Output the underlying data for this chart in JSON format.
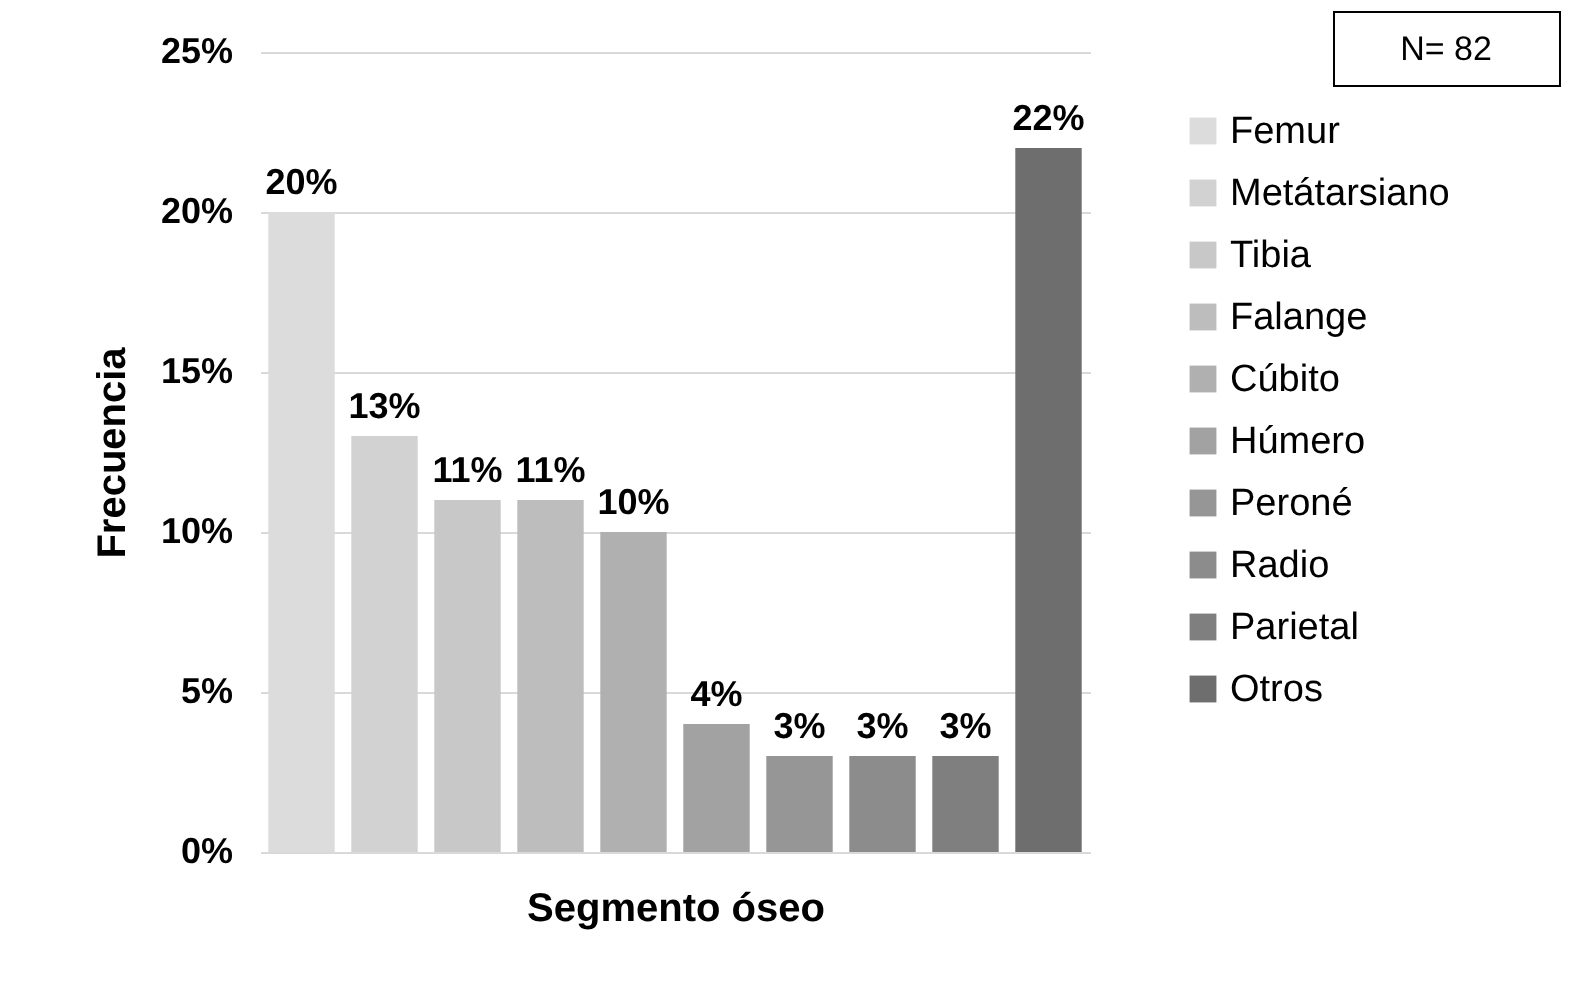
{
  "chart_data": {
    "type": "bar",
    "xlabel": "Segmento óseo",
    "ylabel": "Frecuencia",
    "categories": [
      null,
      null,
      null,
      null,
      null,
      null,
      null,
      null,
      null,
      null
    ],
    "series": [
      {
        "name": "Femur",
        "color": "#dcdcdc",
        "values": [
          20,
          null,
          null,
          null,
          null,
          null,
          null,
          null,
          null,
          null
        ],
        "value_labels": [
          "20%",
          null,
          null,
          null,
          null,
          null,
          null,
          null,
          null,
          null
        ]
      },
      {
        "name": "Metátarsiano",
        "color": "#d2d2d2",
        "values": [
          null,
          13,
          null,
          null,
          null,
          null,
          null,
          null,
          null,
          null
        ],
        "value_labels": [
          null,
          "13%",
          null,
          null,
          null,
          null,
          null,
          null,
          null,
          null
        ]
      },
      {
        "name": "Tibia",
        "color": "#c8c8c8",
        "values": [
          null,
          null,
          11,
          null,
          null,
          null,
          null,
          null,
          null,
          null
        ],
        "value_labels": [
          null,
          null,
          "11%",
          null,
          null,
          null,
          null,
          null,
          null,
          null
        ]
      },
      {
        "name": "Falange",
        "color": "#bdbdbd",
        "values": [
          null,
          null,
          null,
          11,
          null,
          null,
          null,
          null,
          null,
          null
        ],
        "value_labels": [
          null,
          null,
          null,
          "11%",
          null,
          null,
          null,
          null,
          null,
          null
        ]
      },
      {
        "name": "Cúbito",
        "color": "#b0b0b0",
        "values": [
          null,
          null,
          null,
          null,
          10,
          null,
          null,
          null,
          null,
          null
        ],
        "value_labels": [
          null,
          null,
          null,
          null,
          "10%",
          null,
          null,
          null,
          null,
          null
        ]
      },
      {
        "name": "Húmero",
        "color": "#a2a2a2",
        "values": [
          null,
          null,
          null,
          null,
          null,
          4,
          null,
          null,
          null,
          null
        ],
        "value_labels": [
          null,
          null,
          null,
          null,
          null,
          "4%",
          null,
          null,
          null,
          null
        ]
      },
      {
        "name": "Peroné",
        "color": "#969696",
        "values": [
          null,
          null,
          null,
          null,
          null,
          null,
          3,
          null,
          null,
          null
        ],
        "value_labels": [
          null,
          null,
          null,
          null,
          null,
          null,
          "3%",
          null,
          null,
          null
        ]
      },
      {
        "name": "Radio",
        "color": "#8c8c8c",
        "values": [
          null,
          null,
          null,
          null,
          null,
          null,
          null,
          3,
          null,
          null
        ],
        "value_labels": [
          null,
          null,
          null,
          null,
          null,
          null,
          null,
          "3%",
          null,
          null
        ]
      },
      {
        "name": "Parietal",
        "color": "#7f7f7f",
        "values": [
          null,
          null,
          null,
          null,
          null,
          null,
          null,
          null,
          3,
          null
        ],
        "value_labels": [
          null,
          null,
          null,
          null,
          null,
          null,
          null,
          null,
          "3%",
          null
        ]
      },
      {
        "name": "Otros",
        "color": "#6e6e6e",
        "values": [
          null,
          null,
          null,
          null,
          null,
          null,
          null,
          null,
          null,
          22
        ],
        "value_labels": [
          null,
          null,
          null,
          null,
          null,
          null,
          null,
          null,
          null,
          "22%"
        ]
      }
    ],
    "ylim": [
      0,
      25
    ],
    "yticks": [
      {
        "value": 0,
        "label": "0%"
      },
      {
        "value": 5,
        "label": "5%"
      },
      {
        "value": 10,
        "label": "10%"
      },
      {
        "value": 15,
        "label": "15%"
      },
      {
        "value": 20,
        "label": "20%"
      },
      {
        "value": 25,
        "label": "25%"
      }
    ],
    "grid": "y",
    "legend": "right",
    "annotations": [
      "N= 82"
    ]
  }
}
